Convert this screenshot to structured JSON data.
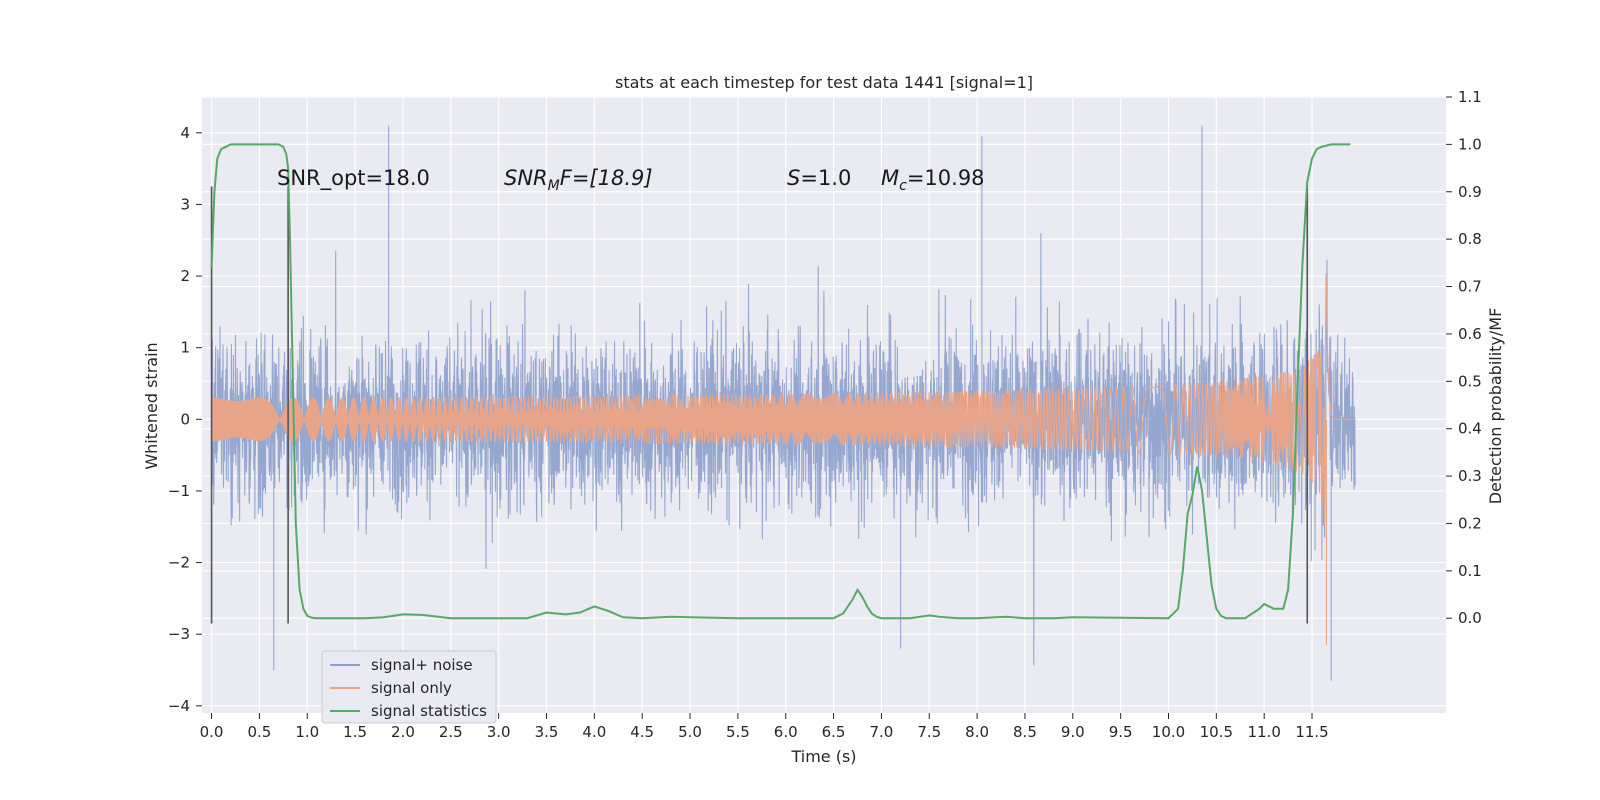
{
  "chart_data": {
    "type": "line",
    "title": "stats at each timestep for test data 1441 [signal=1]",
    "xlabel": "Time (s)",
    "ylabel": "Whitened strain",
    "ylabel_right": "Detection probability/MF",
    "xlim": [
      -0.1,
      12.9
    ],
    "ylim": [
      -4.1,
      4.5
    ],
    "ylim_right": [
      -0.2,
      1.1
    ],
    "x_ticks": [
      "0.0",
      "0.5",
      "1.0",
      "1.5",
      "2.0",
      "2.5",
      "3.0",
      "3.5",
      "4.0",
      "4.5",
      "5.0",
      "5.5",
      "6.0",
      "6.5",
      "7.0",
      "7.5",
      "8.0",
      "8.5",
      "9.0",
      "9.5",
      "10.0",
      "10.5",
      "11.0",
      "11.5"
    ],
    "y_ticks": [
      "4",
      "3",
      "2",
      "1",
      "0",
      "−1",
      "−2",
      "−3",
      "−4"
    ],
    "y_ticks_right": [
      "1.1",
      "1.0",
      "0.9",
      "0.8",
      "0.7",
      "0.6",
      "0.5",
      "0.4",
      "0.3",
      "0.2",
      "0.1",
      "0.0"
    ],
    "grid": true,
    "legend_position": "lower-left",
    "annotations": [
      {
        "label": "snr_opt",
        "base": "SNR_opt=18.0",
        "sub": "",
        "rest": "",
        "italic": false
      },
      {
        "label": "snr_mf",
        "base": "SNR",
        "sub": "M",
        "rest": "F=[18.9]",
        "italic": true
      },
      {
        "label": "s",
        "base": "S",
        "sub": "",
        "rest": "=1.0",
        "italic": true
      },
      {
        "label": "mc",
        "base": "M",
        "sub": "c",
        "rest": "=10.98",
        "italic": true
      }
    ],
    "series": [
      {
        "name": "signal+ noise",
        "color": "#8da0cb",
        "x_range": [
          0.0,
          11.95
        ],
        "typical_amplitude": 1.4,
        "peak_values": [
          [
            1.85,
            4.1
          ],
          [
            8.05,
            3.95
          ],
          [
            10.35,
            4.1
          ],
          [
            0.65,
            -3.5
          ],
          [
            11.7,
            -3.65
          ],
          [
            7.2,
            -3.2
          ]
        ]
      },
      {
        "name": "signal only",
        "color": "#e8a589",
        "x_range": [
          0.0,
          11.95
        ],
        "chirp_peak_time": 11.65,
        "peak_amplitude": 2.2,
        "min_value": -3.15
      },
      {
        "name": "signal statistics",
        "color": "#55a868",
        "axis": "right",
        "x": [
          0.0,
          0.03,
          0.06,
          0.1,
          0.15,
          0.2,
          0.3,
          0.5,
          0.7,
          0.75,
          0.78,
          0.8,
          0.82,
          0.85,
          0.88,
          0.92,
          0.96,
          1.0,
          1.05,
          1.1,
          1.3,
          1.6,
          1.8,
          2.0,
          2.2,
          2.5,
          3.0,
          3.3,
          3.5,
          3.7,
          3.85,
          4.0,
          4.15,
          4.3,
          4.5,
          4.8,
          5.0,
          5.5,
          6.0,
          6.5,
          6.6,
          6.7,
          6.75,
          6.8,
          6.85,
          6.9,
          6.95,
          7.0,
          7.1,
          7.3,
          7.5,
          7.6,
          7.8,
          8.0,
          8.3,
          8.5,
          8.8,
          9.0,
          9.5,
          10.0,
          10.1,
          10.15,
          10.2,
          10.25,
          10.3,
          10.35,
          10.4,
          10.45,
          10.5,
          10.55,
          10.6,
          10.7,
          10.8,
          10.95,
          11.0,
          11.05,
          11.1,
          11.2,
          11.25,
          11.3,
          11.35,
          11.4,
          11.45,
          11.5,
          11.55,
          11.6,
          11.7,
          11.8,
          11.9
        ],
        "y": [
          0.74,
          0.9,
          0.97,
          0.99,
          0.995,
          1.0,
          1.0,
          1.0,
          1.0,
          0.995,
          0.98,
          0.95,
          0.8,
          0.5,
          0.2,
          0.06,
          0.02,
          0.005,
          0.001,
          0.0,
          0.0,
          0.0,
          0.002,
          0.008,
          0.007,
          0.0,
          0.0,
          0.0,
          0.012,
          0.008,
          0.012,
          0.025,
          0.015,
          0.002,
          0.0,
          0.003,
          0.002,
          0.0,
          0.0,
          0.0,
          0.01,
          0.04,
          0.06,
          0.045,
          0.025,
          0.01,
          0.003,
          0.0,
          0.0,
          0.0,
          0.006,
          0.003,
          0.0,
          0.0,
          0.003,
          0.0,
          0.0,
          0.002,
          0.001,
          0.0,
          0.02,
          0.1,
          0.22,
          0.26,
          0.32,
          0.27,
          0.17,
          0.07,
          0.02,
          0.005,
          0.0,
          0.0,
          0.0,
          0.02,
          0.03,
          0.025,
          0.02,
          0.02,
          0.06,
          0.22,
          0.5,
          0.75,
          0.92,
          0.97,
          0.99,
          0.995,
          1.0,
          1.0,
          1.0
        ]
      }
    ],
    "markers": {
      "color": "#555555",
      "x": [
        0.0,
        0.8,
        11.45
      ],
      "y_range": [
        -2.85,
        3.25
      ]
    }
  }
}
